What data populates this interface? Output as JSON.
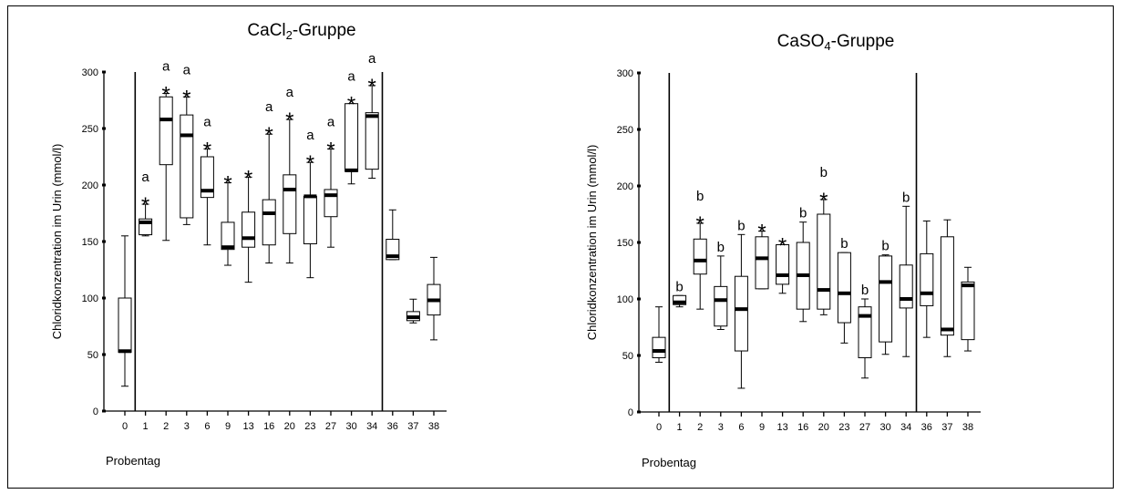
{
  "chart_data": [
    {
      "type": "boxplot",
      "title": "CaCl₂-Gruppe",
      "xlabel": "Probentag",
      "ylabel": "Chloridkonzentration im Urin (mmol/l)",
      "ylim": [
        0,
        300
      ],
      "yticks": [
        "0",
        "50",
        "100",
        "150",
        "200",
        "250",
        "300"
      ],
      "categories": [
        "0",
        "1",
        "2",
        "3",
        "6",
        "9",
        "13",
        "16",
        "20",
        "23",
        "27",
        "30",
        "34",
        "36",
        "37",
        "38"
      ],
      "boxes": [
        {
          "min": 22,
          "q1": 52,
          "median": 53,
          "q3": 100,
          "max": 155
        },
        {
          "min": 155,
          "q1": 156,
          "median": 167,
          "q3": 170,
          "max": 183
        },
        {
          "min": 151,
          "q1": 218,
          "median": 258,
          "q3": 278,
          "max": 281
        },
        {
          "min": 165,
          "q1": 171,
          "median": 244,
          "q3": 262,
          "max": 278
        },
        {
          "min": 147,
          "q1": 189,
          "median": 195,
          "q3": 225,
          "max": 232
        },
        {
          "min": 129,
          "q1": 143,
          "median": 145,
          "q3": 167,
          "max": 202
        },
        {
          "min": 114,
          "q1": 145,
          "median": 153,
          "q3": 176,
          "max": 207
        },
        {
          "min": 131,
          "q1": 147,
          "median": 175,
          "q3": 187,
          "max": 245
        },
        {
          "min": 131,
          "q1": 157,
          "median": 196,
          "q3": 209,
          "max": 258
        },
        {
          "min": 118,
          "q1": 148,
          "median": 190,
          "q3": 190,
          "max": 220
        },
        {
          "min": 145,
          "q1": 172,
          "median": 191,
          "q3": 196,
          "max": 232
        },
        {
          "min": 201,
          "q1": 212,
          "median": 213,
          "q3": 272,
          "max": 272
        },
        {
          "min": 206,
          "q1": 214,
          "median": 261,
          "q3": 264,
          "max": 288
        },
        {
          "min": 134,
          "q1": 134,
          "median": 137,
          "q3": 152,
          "max": 178
        },
        {
          "min": 78,
          "q1": 80,
          "median": 83,
          "q3": 88,
          "max": 99
        },
        {
          "min": 63,
          "q1": 85,
          "median": 98,
          "q3": 112,
          "max": 136
        }
      ],
      "annotations": [
        {
          "category": "1",
          "stars": true,
          "letter": "a"
        },
        {
          "category": "2",
          "stars": true,
          "letter": "a"
        },
        {
          "category": "3",
          "stars": true,
          "letter": "a"
        },
        {
          "category": "6",
          "stars": true,
          "letter": "a"
        },
        {
          "category": "9",
          "stars": true,
          "letter": ""
        },
        {
          "category": "13",
          "stars": true,
          "letter": ""
        },
        {
          "category": "16",
          "stars": true,
          "letter": "a"
        },
        {
          "category": "20",
          "stars": true,
          "letter": "a"
        },
        {
          "category": "23",
          "stars": true,
          "letter": "a"
        },
        {
          "category": "27",
          "stars": true,
          "letter": "a"
        },
        {
          "category": "30",
          "stars": true,
          "letter": "a"
        },
        {
          "category": "34",
          "stars": true,
          "letter": "a"
        }
      ],
      "period_separators_after": [
        "0",
        "34"
      ],
      "grid": false
    },
    {
      "type": "boxplot",
      "title": "CaSO₄-Gruppe",
      "xlabel": "Probentag",
      "ylabel": "Chloridkonzentration im Urin (mmol/l)",
      "ylim": [
        0,
        300
      ],
      "yticks": [
        "0",
        "50",
        "100",
        "150",
        "200",
        "250",
        "300"
      ],
      "categories": [
        "0",
        "1",
        "2",
        "3",
        "6",
        "9",
        "13",
        "16",
        "20",
        "23",
        "27",
        "30",
        "34",
        "36",
        "37",
        "38"
      ],
      "boxes": [
        {
          "min": 44,
          "q1": 48,
          "median": 54,
          "q3": 66,
          "max": 93
        },
        {
          "min": 93,
          "q1": 95,
          "median": 97,
          "q3": 103,
          "max": 103
        },
        {
          "min": 91,
          "q1": 122,
          "median": 134,
          "q3": 153,
          "max": 167
        },
        {
          "min": 73,
          "q1": 76,
          "median": 99,
          "q3": 111,
          "max": 138
        },
        {
          "min": 21,
          "q1": 54,
          "median": 91,
          "q3": 120,
          "max": 157
        },
        {
          "min": 109,
          "q1": 109,
          "median": 136,
          "q3": 155,
          "max": 160
        },
        {
          "min": 105,
          "q1": 113,
          "median": 121,
          "q3": 148,
          "max": 148
        },
        {
          "min": 80,
          "q1": 91,
          "median": 121,
          "q3": 150,
          "max": 168
        },
        {
          "min": 86,
          "q1": 91,
          "median": 108,
          "q3": 175,
          "max": 188
        },
        {
          "min": 61,
          "q1": 79,
          "median": 105,
          "q3": 141,
          "max": 141
        },
        {
          "min": 30,
          "q1": 48,
          "median": 85,
          "q3": 93,
          "max": 100
        },
        {
          "min": 51,
          "q1": 62,
          "median": 115,
          "q3": 138,
          "max": 139
        },
        {
          "min": 49,
          "q1": 92,
          "median": 100,
          "q3": 130,
          "max": 182
        },
        {
          "min": 66,
          "q1": 94,
          "median": 105,
          "q3": 140,
          "max": 169
        },
        {
          "min": 49,
          "q1": 68,
          "median": 73,
          "q3": 155,
          "max": 170
        },
        {
          "min": 54,
          "q1": 64,
          "median": 112,
          "q3": 115,
          "max": 128
        }
      ],
      "annotations": [
        {
          "category": "1",
          "stars": false,
          "letter": "b"
        },
        {
          "category": "2",
          "stars": true,
          "letter": "b"
        },
        {
          "category": "3",
          "stars": false,
          "letter": "b"
        },
        {
          "category": "6",
          "stars": false,
          "letter": "b"
        },
        {
          "category": "9",
          "stars": true,
          "letter": ""
        },
        {
          "category": "13",
          "stars": true,
          "letter": ""
        },
        {
          "category": "16",
          "stars": false,
          "letter": "b"
        },
        {
          "category": "20",
          "stars": true,
          "letter": "b"
        },
        {
          "category": "23",
          "stars": false,
          "letter": "b"
        },
        {
          "category": "27",
          "stars": false,
          "letter": "b"
        },
        {
          "category": "30",
          "stars": false,
          "letter": "b"
        },
        {
          "category": "34",
          "stars": false,
          "letter": "b"
        }
      ],
      "period_separators_after": [
        "0",
        "34"
      ],
      "grid": false
    }
  ]
}
